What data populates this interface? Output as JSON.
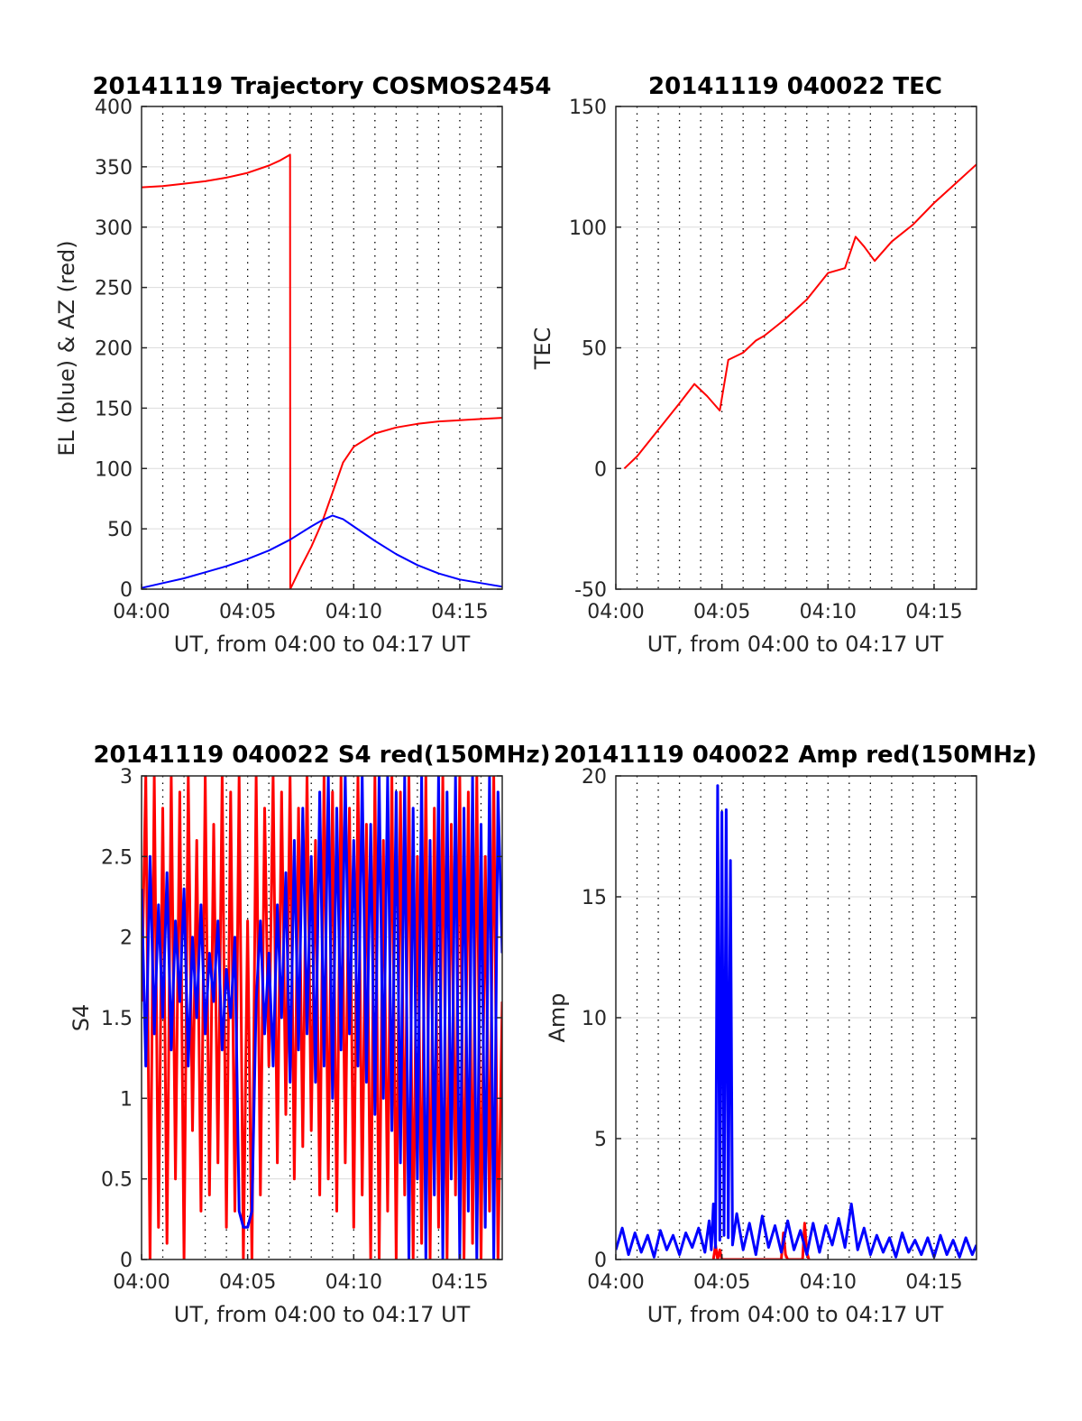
{
  "colors": {
    "red": "#ff0000",
    "blue": "#0000ff",
    "grid_dotted": "#000000",
    "grid_solid": "#dcdcdc"
  },
  "chart_data": [
    {
      "id": "trajectory",
      "type": "line",
      "title": "20141119 Trajectory COSMOS2454",
      "xlabel": "UT, from 04:00 to 04:17 UT",
      "ylabel": "EL (blue) & AZ (red)",
      "x_unit": "minutes after 04:00 UT",
      "xlim": [
        0,
        17
      ],
      "ylim": [
        0,
        400
      ],
      "x_ticks": [
        0,
        5,
        10,
        15
      ],
      "x_tick_labels": [
        "04:00",
        "04:05",
        "04:10",
        "04:15"
      ],
      "y_ticks": [
        0,
        50,
        100,
        150,
        200,
        250,
        300,
        350,
        400
      ],
      "y_tick_labels": [
        "0",
        "50",
        "100",
        "150",
        "200",
        "250",
        "300",
        "350",
        "400"
      ],
      "grid": true,
      "series": [
        {
          "color": "#ff0000",
          "x": [
            0,
            1,
            2,
            3,
            4,
            5,
            6,
            6.5,
            7,
            7.01,
            7.5,
            8,
            8.5,
            9,
            9.5,
            10,
            11,
            12,
            13,
            14,
            15,
            16,
            17
          ],
          "values": [
            333,
            334,
            336,
            338,
            341,
            345,
            351,
            355,
            360,
            0,
            18,
            35,
            55,
            80,
            105,
            118,
            129,
            134,
            137,
            139,
            140,
            141,
            142
          ]
        },
        {
          "color": "#0000ff",
          "x": [
            0,
            1,
            2,
            3,
            4,
            5,
            6,
            7,
            8,
            8.5,
            9,
            9.5,
            10,
            11,
            12,
            13,
            14,
            15,
            16,
            17
          ],
          "values": [
            1,
            5,
            9,
            14,
            19,
            25,
            32,
            41,
            52,
            57,
            61,
            58,
            52,
            40,
            29,
            20,
            13,
            8,
            5,
            2
          ]
        }
      ]
    },
    {
      "id": "tec",
      "type": "line",
      "title": "20141119 040022 TEC",
      "xlabel": "UT, from 04:00 to 04:17 UT",
      "ylabel": "TEC",
      "x_unit": "minutes after 04:00 UT",
      "xlim": [
        0,
        17
      ],
      "ylim": [
        -50,
        150
      ],
      "x_ticks": [
        0,
        5,
        10,
        15
      ],
      "x_tick_labels": [
        "04:00",
        "04:05",
        "04:10",
        "04:15"
      ],
      "y_ticks": [
        -50,
        0,
        50,
        100,
        150
      ],
      "y_tick_labels": [
        "-50",
        "0",
        "50",
        "100",
        "150"
      ],
      "grid": true,
      "series": [
        {
          "color": "#ff0000",
          "x": [
            0.4,
            1,
            2,
            3,
            3.7,
            4.3,
            4.9,
            5.3,
            6,
            6.6,
            7,
            8,
            9,
            10,
            10.8,
            11.3,
            11.7,
            12.2,
            13,
            14,
            15,
            16,
            17
          ],
          "values": [
            0,
            5,
            16,
            27,
            35,
            30,
            24,
            45,
            48,
            53,
            55,
            62,
            70,
            81,
            83,
            96,
            92,
            86,
            94,
            101,
            110,
            118,
            126
          ]
        }
      ]
    },
    {
      "id": "s4",
      "type": "line",
      "title": "20141119 040022 S4 red(150MHz)",
      "xlabel": "UT, from 04:00 to 04:17 UT",
      "ylabel": "S4",
      "x_unit": "minutes after 04:00 UT",
      "xlim": [
        0,
        17
      ],
      "ylim": [
        0,
        3
      ],
      "x_ticks": [
        0,
        5,
        10,
        15
      ],
      "x_tick_labels": [
        "04:00",
        "04:05",
        "04:10",
        "04:15"
      ],
      "y_ticks": [
        0,
        0.5,
        1,
        1.5,
        2,
        2.5,
        3
      ],
      "y_tick_labels": [
        "0",
        "0.5",
        "1",
        "1.5",
        "2",
        "2.5",
        "3"
      ],
      "grid": true,
      "series": [
        {
          "color": "#ff0000",
          "x": [
            0,
            0.2,
            0.4,
            0.6,
            0.8,
            1.0,
            1.2,
            1.4,
            1.6,
            1.8,
            2.0,
            2.2,
            2.4,
            2.6,
            2.8,
            3.0,
            3.2,
            3.4,
            3.6,
            3.8,
            4.0,
            4.2,
            4.4,
            4.6,
            4.8,
            5.0,
            5.2,
            5.4,
            5.6,
            5.8,
            6.0,
            6.2,
            6.4,
            6.6,
            6.8,
            7.0,
            7.2,
            7.4,
            7.6,
            7.8,
            8.0,
            8.2,
            8.4,
            8.6,
            8.8,
            9.0,
            9.2,
            9.4,
            9.6,
            9.8,
            10.0,
            10.2,
            10.4,
            10.6,
            10.8,
            11.0,
            11.2,
            11.4,
            11.6,
            11.8,
            12.0,
            12.2,
            12.4,
            12.6,
            12.8,
            13.0,
            13.2,
            13.4,
            13.6,
            13.8,
            14.0,
            14.2,
            14.4,
            14.6,
            14.8,
            15.0,
            15.2,
            15.4,
            15.6,
            15.8,
            16.0,
            16.2,
            16.4,
            16.6,
            16.8,
            17.0
          ],
          "values": [
            1.6,
            3.0,
            0,
            3.0,
            0.2,
            2.8,
            0.1,
            3.0,
            0.5,
            2.9,
            0,
            3.0,
            0.8,
            2.6,
            0.3,
            3.0,
            0.4,
            2.7,
            0.6,
            3.0,
            0.2,
            2.9,
            0.3,
            3.0,
            0,
            2.1,
            0,
            3.0,
            0.4,
            2.8,
            1.2,
            3.0,
            0.6,
            2.9,
            0.9,
            3.0,
            0.5,
            2.8,
            0.7,
            3.0,
            0.8,
            2.6,
            0.4,
            3.0,
            0.5,
            2.9,
            0.3,
            3.0,
            0.6,
            2.8,
            0.2,
            3.0,
            0.4,
            2.7,
            0,
            3.0,
            0,
            2.6,
            0.3,
            3.0,
            0,
            2.9,
            0.4,
            3.0,
            0,
            2.5,
            0.1,
            3.0,
            0,
            2.8,
            0.2,
            3.0,
            0,
            2.7,
            0.4,
            3.0,
            0,
            2.9,
            0.1,
            3.0,
            0,
            2.5,
            0.3,
            3.0,
            0,
            1.6
          ]
        },
        {
          "color": "#0000ff",
          "x": [
            0,
            0.2,
            0.4,
            0.6,
            0.8,
            1.0,
            1.2,
            1.4,
            1.6,
            1.8,
            2.0,
            2.2,
            2.4,
            2.6,
            2.8,
            3.0,
            3.2,
            3.4,
            3.6,
            3.8,
            4.0,
            4.2,
            4.4,
            4.6,
            4.8,
            5.0,
            5.2,
            5.4,
            5.6,
            5.8,
            6.0,
            6.2,
            6.4,
            6.6,
            6.8,
            7.0,
            7.2,
            7.4,
            7.6,
            7.8,
            8.0,
            8.2,
            8.4,
            8.6,
            8.8,
            9.0,
            9.2,
            9.4,
            9.6,
            9.8,
            10.0,
            10.2,
            10.4,
            10.6,
            10.8,
            11.0,
            11.2,
            11.4,
            11.6,
            11.8,
            12.0,
            12.2,
            12.4,
            12.6,
            12.8,
            13.0,
            13.2,
            13.4,
            13.6,
            13.8,
            14.0,
            14.2,
            14.4,
            14.6,
            14.8,
            15.0,
            15.2,
            15.4,
            15.6,
            15.8,
            16.0,
            16.2,
            16.4,
            16.6,
            16.8,
            17.0
          ],
          "values": [
            2.3,
            1.2,
            2.5,
            1.4,
            2.2,
            1.5,
            2.4,
            1.3,
            2.1,
            1.6,
            2.3,
            1.2,
            2.0,
            1.5,
            2.2,
            1.4,
            1.9,
            1.6,
            2.1,
            1.3,
            1.8,
            1.5,
            2.0,
            0.3,
            0.2,
            0.2,
            0.3,
            1.6,
            2.1,
            1.4,
            1.9,
            1.2,
            2.2,
            1.5,
            2.4,
            1.1,
            2.6,
            1.3,
            2.8,
            1.4,
            2.5,
            1.1,
            2.9,
            1.2,
            3.0,
            1.0,
            2.8,
            1.3,
            3.0,
            1.4,
            2.6,
            1.2,
            3.0,
            1.1,
            2.7,
            0.9,
            3.0,
            1.0,
            3.0,
            0.8,
            2.9,
            0.6,
            3.0,
            0,
            2.8,
            0.5,
            3.0,
            0,
            2.6,
            0.4,
            3.0,
            0,
            2.9,
            0.5,
            3.0,
            0,
            2.8,
            0.3,
            3.0,
            0,
            2.7,
            0.2,
            3.0,
            0,
            2.9,
            1.9
          ]
        }
      ]
    },
    {
      "id": "amp",
      "type": "line",
      "title": "20141119 040022 Amp red(150MHz)",
      "xlabel": "UT, from 04:00 to 04:17 UT",
      "ylabel": "Amp",
      "x_unit": "minutes after 04:00 UT",
      "xlim": [
        0,
        17
      ],
      "ylim": [
        0,
        20
      ],
      "x_ticks": [
        0,
        5,
        10,
        15
      ],
      "x_tick_labels": [
        "04:00",
        "04:05",
        "04:10",
        "04:15"
      ],
      "y_ticks": [
        0,
        5,
        10,
        15,
        20
      ],
      "y_tick_labels": [
        "0",
        "5",
        "10",
        "15",
        "20"
      ],
      "grid": true,
      "series": [
        {
          "color": "#ff0000",
          "x": [
            4.6,
            4.7,
            4.8,
            4.9,
            5.0,
            7.8,
            7.9,
            8.0,
            8.1,
            8.8,
            8.9,
            9.0,
            9.1
          ],
          "values": [
            0,
            0.6,
            0,
            0.4,
            0,
            0,
            1.1,
            0.2,
            0,
            0,
            1.5,
            0.3,
            0
          ]
        },
        {
          "color": "#0000ff",
          "x": [
            0,
            0.3,
            0.6,
            0.9,
            1.2,
            1.5,
            1.8,
            2.1,
            2.4,
            2.7,
            3.0,
            3.3,
            3.6,
            3.9,
            4.2,
            4.4,
            4.5,
            4.6,
            4.7,
            4.8,
            4.9,
            5.0,
            5.1,
            5.2,
            5.3,
            5.4,
            5.5,
            5.7,
            6.0,
            6.3,
            6.6,
            6.9,
            7.2,
            7.5,
            7.8,
            8.1,
            8.4,
            8.7,
            9.0,
            9.3,
            9.6,
            9.9,
            10.2,
            10.5,
            10.8,
            11.1,
            11.4,
            11.7,
            12.0,
            12.3,
            12.6,
            12.9,
            13.2,
            13.5,
            13.8,
            14.1,
            14.4,
            14.7,
            15.0,
            15.3,
            15.6,
            15.9,
            16.2,
            16.5,
            16.8,
            17.0
          ],
          "values": [
            0.4,
            1.3,
            0.2,
            1.1,
            0.3,
            1.0,
            0.1,
            1.2,
            0.4,
            1.0,
            0.2,
            1.1,
            0.5,
            1.3,
            0.3,
            1.6,
            0.4,
            2.3,
            0.5,
            19.6,
            0.8,
            18.5,
            1.0,
            18.6,
            0.9,
            16.5,
            0.6,
            1.9,
            0.4,
            1.5,
            0.2,
            1.8,
            0.5,
            1.4,
            0.3,
            1.6,
            0.4,
            1.2,
            0.2,
            1.5,
            0.3,
            1.4,
            0.6,
            1.7,
            0.5,
            2.3,
            0.4,
            1.3,
            0.2,
            1.0,
            0.3,
            0.9,
            0.1,
            1.1,
            0.3,
            0.8,
            0.2,
            0.9,
            0.1,
            1.0,
            0.2,
            0.8,
            0.1,
            0.9,
            0.2,
            0.6
          ]
        }
      ]
    }
  ]
}
